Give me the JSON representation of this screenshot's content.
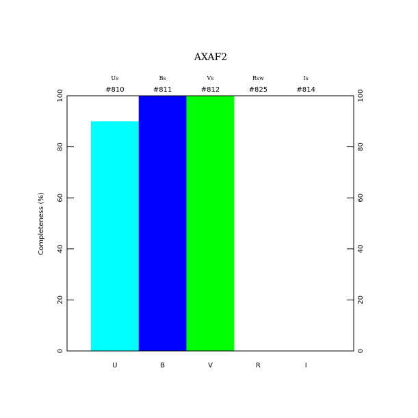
{
  "chart_data": {
    "type": "bar",
    "title": "AXAF2",
    "y_label": "Completeness (%)",
    "categories": [
      "U",
      "B",
      "V",
      "R",
      "I"
    ],
    "filters": [
      "Us",
      "Bs",
      "Vs",
      "Rsw",
      "Is"
    ],
    "filter_ids": [
      "#810",
      "#811",
      "#812",
      "#825",
      "#814"
    ],
    "values": [
      90,
      100,
      100,
      0,
      0
    ],
    "colors": [
      "#00ffff",
      "#0000ff",
      "#00ff00",
      "#ff0000",
      "#ff00ff"
    ],
    "ylim": [
      0,
      100
    ],
    "yticks": [
      0,
      20,
      40,
      60,
      80,
      100
    ]
  }
}
